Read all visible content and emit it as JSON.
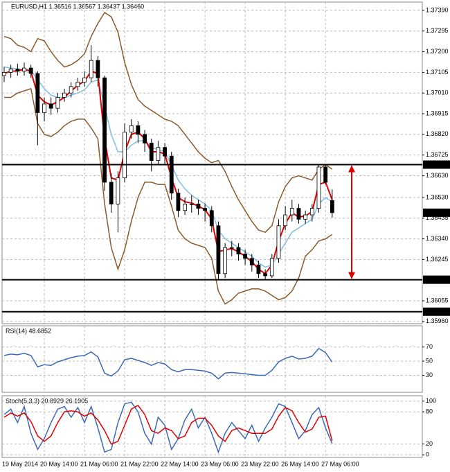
{
  "chart_data": [
    {
      "type": "candlestick",
      "title": "EURUSD,H1  1.36516 1.36567 1.36437 1.36460",
      "ylim": [
        1.3595,
        1.37428
      ],
      "yticks": [
        {
          "value": 1.3739,
          "label": "1.37390"
        },
        1.37295,
        {
          "value": 1.372,
          "label": "1.37200"
        },
        1.37105,
        {
          "value": 1.3701,
          "label": "1.37010"
        },
        1.36915,
        {
          "value": 1.3682,
          "label": "1.36820"
        },
        1.36725,
        {
          "value": 1.3663,
          "label": "1.36630"
        },
        {
          "value": 1.3653,
          "label": "1.36530"
        },
        1.36435,
        {
          "value": 1.3634,
          "label": "1.36340"
        },
        1.36245,
        1.36055,
        {
          "value": 1.3596,
          "label": "1.35960"
        }
      ],
      "grid": true,
      "hlines": [
        1.36681,
        1.36152,
        1.36005
      ],
      "last_price": {
        "value": 1.3646,
        "label": "1.36460"
      },
      "open": [
        1.3709,
        1.37105,
        1.3712,
        1.3711,
        1.37125,
        1.371,
        1.3692,
        1.3696,
        1.3694,
        1.3699,
        1.3701,
        1.3704,
        1.3706,
        1.3708,
        1.3716,
        1.3708,
        1.366,
        1.365,
        1.3662,
        1.3683,
        1.3686,
        1.3682,
        1.3678,
        1.367,
        1.3676,
        1.3672,
        1.3655,
        1.3647,
        1.365,
        1.365,
        1.3648,
        1.3647,
        1.364,
        1.3618,
        1.363,
        1.363,
        1.3627,
        1.3625,
        1.3622,
        1.3618,
        1.3617,
        1.3625,
        1.364,
        1.3645,
        1.3648,
        1.3643,
        1.3645,
        1.3648,
        1.3667,
        1.36516
      ],
      "high": [
        1.3713,
        1.3714,
        1.37145,
        1.3715,
        1.3714,
        1.3711,
        1.3699,
        1.3699,
        1.3701,
        1.3703,
        1.3706,
        1.3708,
        1.3711,
        1.3723,
        1.3718,
        1.3709,
        1.3664,
        1.3665,
        1.3687,
        1.3689,
        1.3688,
        1.3684,
        1.368,
        1.3679,
        1.3678,
        1.3674,
        1.3657,
        1.3653,
        1.3654,
        1.3652,
        1.365,
        1.3649,
        1.3642,
        1.3632,
        1.3633,
        1.3632,
        1.3629,
        1.3627,
        1.3624,
        1.362,
        1.3627,
        1.3643,
        1.3649,
        1.3652,
        1.365,
        1.3647,
        1.365,
        1.36681,
        1.3668,
        1.36567
      ],
      "low": [
        1.3706,
        1.3708,
        1.3709,
        1.3709,
        1.3708,
        1.3677,
        1.3688,
        1.3691,
        1.3692,
        1.3697,
        1.3699,
        1.3702,
        1.3704,
        1.3706,
        1.3704,
        1.3656,
        1.3646,
        1.3637,
        1.366,
        1.368,
        1.3678,
        1.3674,
        1.3665,
        1.3668,
        1.3668,
        1.3652,
        1.3644,
        1.3645,
        1.3646,
        1.3645,
        1.3642,
        1.3637,
        1.3615,
        1.3616,
        1.3626,
        1.3624,
        1.3622,
        1.3619,
        1.3616,
        1.3615,
        1.3616,
        1.3623,
        1.3638,
        1.3642,
        1.3641,
        1.3641,
        1.3642,
        1.3646,
        1.3659,
        1.36437
      ],
      "close": [
        1.37105,
        1.3712,
        1.3711,
        1.37125,
        1.371,
        1.3692,
        1.3696,
        1.3694,
        1.3699,
        1.3701,
        1.3704,
        1.3706,
        1.3708,
        1.3716,
        1.3708,
        1.366,
        1.365,
        1.3662,
        1.3683,
        1.3686,
        1.3682,
        1.3678,
        1.367,
        1.3676,
        1.3672,
        1.3655,
        1.3647,
        1.365,
        1.365,
        1.3648,
        1.3647,
        1.364,
        1.3618,
        1.363,
        1.363,
        1.3627,
        1.3625,
        1.3622,
        1.3618,
        1.3617,
        1.3625,
        1.364,
        1.3645,
        1.3648,
        1.3643,
        1.3645,
        1.3648,
        1.3667,
        1.366,
        1.3646
      ],
      "series": [
        {
          "color": "#8b5a2b",
          "values": [
            1.3727,
            1.3726,
            1.3723,
            1.3722,
            1.372,
            1.3726,
            1.3725,
            1.372,
            1.3716,
            1.3713,
            1.3714,
            1.3716,
            1.3719,
            1.3727,
            1.3733,
            1.3738,
            1.3736,
            1.3729,
            1.3715,
            1.3705,
            1.3698,
            1.3695,
            1.3693,
            1.3691,
            1.3689,
            1.3688,
            1.3686,
            1.3682,
            1.3678,
            1.3674,
            1.3671,
            1.3669,
            1.367,
            1.3665,
            1.3658,
            1.3652,
            1.3647,
            1.3642,
            1.3638,
            1.3637,
            1.364,
            1.3651,
            1.3658,
            1.3662,
            1.3663,
            1.3662,
            1.3661,
            1.3666,
            1.3668,
            1.3666
          ]
        },
        {
          "color": "#8b5a2b",
          "values": [
            1.3699,
            1.3699,
            1.3701,
            1.3702,
            1.3703,
            1.3687,
            1.3682,
            1.3681,
            1.3683,
            1.3686,
            1.3688,
            1.3689,
            1.3689,
            1.3685,
            1.368,
            1.365,
            1.363,
            1.362,
            1.3629,
            1.3642,
            1.3653,
            1.366,
            1.366,
            1.3659,
            1.3659,
            1.3649,
            1.3638,
            1.3634,
            1.3632,
            1.3631,
            1.363,
            1.3625,
            1.361,
            1.3604,
            1.3606,
            1.3609,
            1.361,
            1.3611,
            1.3611,
            1.361,
            1.3608,
            1.3606,
            1.3607,
            1.361,
            1.3616,
            1.3626,
            1.3629,
            1.3633,
            1.3634,
            1.3636
          ]
        },
        {
          "color": "#7fbfe0",
          "values": [
            1.3713,
            1.37125,
            1.3712,
            1.37118,
            1.37115,
            1.3707,
            1.3703,
            1.37,
            1.3699,
            1.3699,
            1.37,
            1.3701,
            1.37025,
            1.3706,
            1.3707,
            1.3695,
            1.3682,
            1.3674,
            1.3674,
            1.3677,
            1.3679,
            1.3679,
            1.3676,
            1.3675,
            1.3674,
            1.3668,
            1.3661,
            1.3657,
            1.3654,
            1.3652,
            1.365,
            1.3647,
            1.3638,
            1.3634,
            1.3632,
            1.363,
            1.3628,
            1.3626,
            1.3623,
            1.3621,
            1.3622,
            1.3627,
            1.3632,
            1.3637,
            1.3639,
            1.3641,
            1.3643,
            1.365,
            1.3653,
            1.3651
          ]
        },
        {
          "color": "#e00000",
          "values": [
            1.371,
            1.3711,
            1.37112,
            1.37118,
            1.3711,
            1.37,
            1.3697,
            1.36955,
            1.3697,
            1.3699,
            1.3702,
            1.37045,
            1.37065,
            1.3711,
            1.371,
            1.368,
            1.3662,
            1.3661,
            1.3674,
            1.3682,
            1.3683,
            1.368,
            1.3674,
            1.3674,
            1.3673,
            1.3662,
            1.3653,
            1.3651,
            1.36505,
            1.3649,
            1.36475,
            1.3643,
            1.3628,
            1.3629,
            1.36295,
            1.3628,
            1.3626,
            1.36235,
            1.362,
            1.3618,
            1.3622,
            1.3633,
            1.3641,
            1.3646,
            1.3644,
            1.36445,
            1.36465,
            1.3659,
            1.366,
            1.3652
          ]
        }
      ]
    },
    {
      "type": "line",
      "title": "RSI(14) 48.6852",
      "ylim": [
        6,
        100
      ],
      "yticks": [
        70,
        50,
        30
      ],
      "grid": true,
      "color": "#3a6ab8",
      "values": [
        58,
        60,
        59,
        61,
        58,
        42,
        45,
        44,
        49,
        52,
        55,
        57,
        58,
        63,
        56,
        33,
        29,
        36,
        52,
        54,
        51,
        48,
        44,
        48,
        46,
        38,
        35,
        38,
        38,
        37,
        36,
        33,
        25,
        33,
        34,
        33,
        32,
        31,
        30,
        30,
        37,
        49,
        54,
        57,
        53,
        54,
        57,
        68,
        62,
        48.6852
      ]
    },
    {
      "type": "line",
      "title": "Stoch(5,3,3) 20.8929 26.1905",
      "ylim": [
        -5,
        110
      ],
      "yticks": [
        100,
        80,
        20,
        0
      ],
      "grid": true,
      "categories": [
        "19 May 2014",
        null,
        null,
        null,
        null,
        null,
        "20 May 14:00",
        null,
        null,
        null,
        null,
        null,
        "21 May 06:00",
        null,
        null,
        null,
        null,
        null,
        "21 May 22:00",
        null,
        null,
        null,
        null,
        null,
        "22 May 14:00",
        null,
        null,
        null,
        null,
        null,
        "23 May 06:00",
        null,
        null,
        null,
        null,
        null,
        "23 May 22:00",
        null,
        null,
        null,
        null,
        null,
        "26 May 14:00",
        null,
        null,
        null,
        null,
        null,
        "27 May 06:00",
        null
      ],
      "series": [
        {
          "color": "#3a6ab8",
          "values": [
            75,
            85,
            60,
            90,
            40,
            10,
            30,
            60,
            85,
            90,
            70,
            88,
            60,
            90,
            50,
            5,
            10,
            60,
            95,
            98,
            80,
            40,
            20,
            70,
            55,
            10,
            30,
            65,
            85,
            50,
            70,
            40,
            5,
            40,
            60,
            45,
            30,
            55,
            25,
            50,
            70,
            95,
            90,
            60,
            30,
            45,
            75,
            88,
            50,
            20.8929
          ]
        },
        {
          "color": "#e00000",
          "values": [
            70,
            78,
            72,
            78,
            62,
            35,
            25,
            35,
            60,
            80,
            82,
            80,
            72,
            78,
            65,
            45,
            20,
            25,
            55,
            85,
            92,
            75,
            45,
            40,
            50,
            45,
            30,
            35,
            60,
            68,
            68,
            55,
            35,
            25,
            45,
            50,
            45,
            40,
            40,
            40,
            48,
            72,
            88,
            82,
            60,
            42,
            48,
            70,
            72,
            26.1905
          ]
        }
      ]
    }
  ]
}
